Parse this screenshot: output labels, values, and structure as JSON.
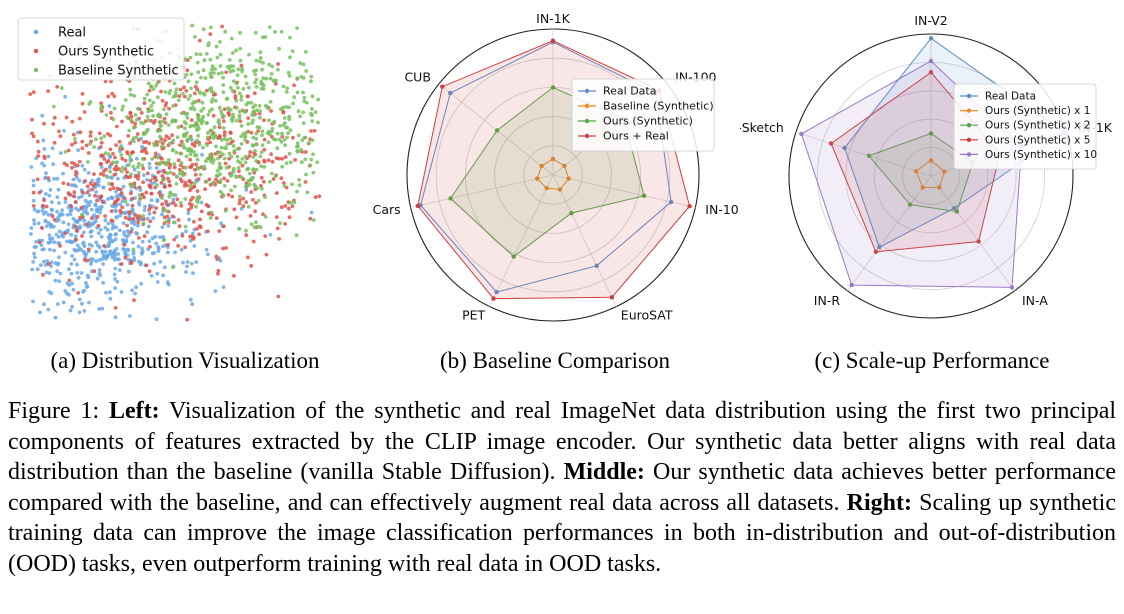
{
  "colors": {
    "real": "#5b8fc9",
    "baseline": "#f08a24",
    "ours": "#55a84c",
    "ours_real": "#cf3f3a",
    "x5": "#cf3f3a",
    "x10": "#9a79c7",
    "scatter_real": "#6aa9e8",
    "scatter_ours": "#e0544a",
    "scatter_baseline": "#77c15f"
  },
  "chart_data": [
    {
      "type": "scatter",
      "title": "",
      "legend": [
        "Real",
        "Ours Synthetic",
        "Baseline Synthetic"
      ],
      "legend_position": "top-left",
      "grid": false,
      "series": [
        {
          "name": "Real",
          "center": [
            -1.3,
            -0.6
          ],
          "spread": [
            0.9,
            0.45
          ]
        },
        {
          "name": "Ours Synthetic",
          "center": [
            -0.2,
            0.1
          ],
          "spread": [
            1.2,
            0.55
          ]
        },
        {
          "name": "Baseline Synthetic",
          "center": [
            0.8,
            0.6
          ],
          "spread": [
            1.0,
            0.55
          ]
        }
      ],
      "caption": "(a) Distribution Visualization"
    },
    {
      "type": "radar",
      "axes": [
        "IN-1K",
        "IN-100",
        "IN-10",
        "EuroSAT",
        "PET",
        "Cars",
        "CUB"
      ],
      "rmax": 1.0,
      "rings": [
        0.2,
        0.4,
        0.6,
        0.8,
        1.0
      ],
      "legend_position": "upper-right",
      "series": [
        {
          "name": "Real Data",
          "color": "real",
          "values": [
            0.91,
            0.9,
            0.83,
            0.69,
            0.89,
            0.93,
            0.9
          ],
          "fill": false
        },
        {
          "name": "Baseline (Synthetic)",
          "color": "baseline",
          "values": [
            0.11,
            0.1,
            0.11,
            0.11,
            0.1,
            0.11,
            0.1
          ],
          "fill": false
        },
        {
          "name": "Ours (Synthetic)",
          "color": "ours",
          "values": [
            0.6,
            0.62,
            0.64,
            0.29,
            0.62,
            0.72,
            0.49
          ],
          "fill": true
        },
        {
          "name": "Ours + Real",
          "color": "ours_real",
          "values": [
            0.92,
            0.93,
            0.96,
            0.93,
            0.94,
            0.95,
            0.97
          ],
          "fill": true
        }
      ],
      "caption": "(b) Baseline Comparison"
    },
    {
      "type": "radar",
      "axes": [
        "IN-V2",
        "IN-1K",
        "IN-A",
        "IN-R",
        "IN-Sketch"
      ],
      "rmax": 1.0,
      "rings": [
        0.2,
        0.4,
        0.6,
        0.8,
        1.0
      ],
      "legend_position": "upper-right",
      "series": [
        {
          "name": "Real Data",
          "color": "real",
          "values": [
            0.97,
            0.99,
            0.28,
            0.62,
            0.64
          ],
          "fill": true
        },
        {
          "name": "Ours (Synthetic) x 1",
          "color": "baseline",
          "values": [
            0.11,
            0.1,
            0.1,
            0.1,
            0.11
          ],
          "fill": false
        },
        {
          "name": "Ours (Synthetic) x 2",
          "color": "ours",
          "values": [
            0.3,
            0.31,
            0.31,
            0.25,
            0.46
          ],
          "fill": true
        },
        {
          "name": "Ours (Synthetic) x 5",
          "color": "x5",
          "values": [
            0.73,
            0.51,
            0.57,
            0.66,
            0.74
          ],
          "fill": true
        },
        {
          "name": "Ours (Synthetic) x 10",
          "color": "x10",
          "values": [
            0.81,
            0.67,
            0.97,
            0.95,
            0.96
          ],
          "fill": true
        }
      ],
      "caption": "(c) Scale-up Performance"
    }
  ],
  "caption": {
    "prefix": "Figure 1:",
    "left_label": "Left:",
    "left_text": " Visualization of the synthetic and real ImageNet data distribution using the first two principal components of features extracted by the CLIP image encoder. Our synthetic data better aligns with real data distribution than the baseline (vanilla Stable Diffusion). ",
    "middle_label": "Middle:",
    "middle_text": " Our synthetic data achieves better performance compared with the baseline, and can effectively augment real data across all datasets. ",
    "right_label": "Right:",
    "right_text": " Scaling up synthetic training data can improve the image classification performances in both in-distribution and out-of-distribution (OOD) tasks, even outperform training with real data in OOD tasks."
  }
}
